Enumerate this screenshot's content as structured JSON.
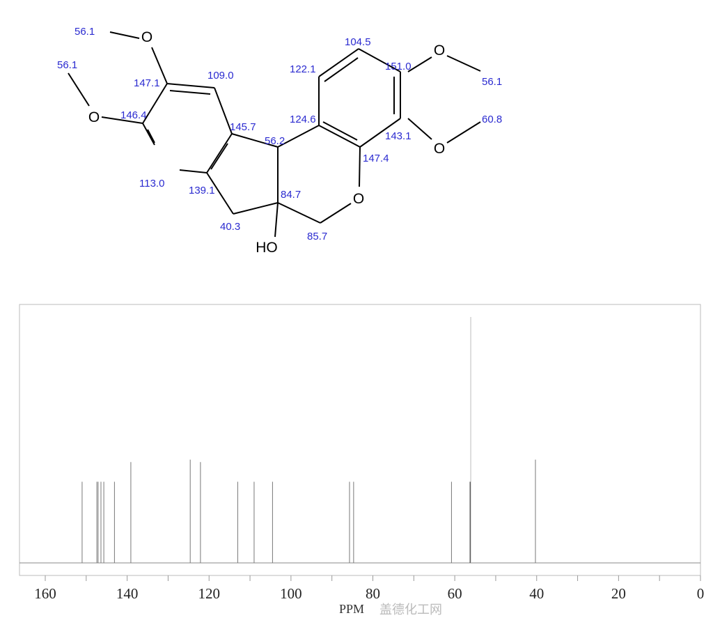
{
  "molecule": {
    "atoms": {
      "o_top_left": "O",
      "o_left": "O",
      "o_right_top": "O",
      "o_right_bottom": "O",
      "o_ring": "O",
      "hydroxyl": "HO"
    },
    "shift_labels": [
      "56.1",
      "56.1",
      "147.1",
      "109.0",
      "146.4",
      "145.7",
      "113.0",
      "139.1",
      "40.3",
      "56.2",
      "84.7",
      "85.7",
      "124.6",
      "122.1",
      "104.5",
      "151.0",
      "143.1",
      "147.4",
      "56.1",
      "60.8"
    ],
    "label_color": "#2a2ad0"
  },
  "chart_data": {
    "type": "bar",
    "title": "",
    "xlabel": "PPM",
    "ylabel": "",
    "xlim": [
      166.3,
      0
    ],
    "x_reversed": true,
    "x_ticks_major": [
      160,
      140,
      120,
      100,
      80,
      60,
      40,
      20,
      0
    ],
    "x_ticks_minor": [
      150,
      130,
      110,
      90,
      70,
      50,
      30,
      10
    ],
    "grid": false,
    "peaks": [
      {
        "ppm": 151.0,
        "intensity": 0.33
      },
      {
        "ppm": 147.4,
        "intensity": 0.33
      },
      {
        "ppm": 147.1,
        "intensity": 0.33
      },
      {
        "ppm": 146.4,
        "intensity": 0.33
      },
      {
        "ppm": 145.7,
        "intensity": 0.33
      },
      {
        "ppm": 143.1,
        "intensity": 0.33
      },
      {
        "ppm": 139.1,
        "intensity": 0.41
      },
      {
        "ppm": 124.6,
        "intensity": 0.42
      },
      {
        "ppm": 122.1,
        "intensity": 0.41
      },
      {
        "ppm": 113.0,
        "intensity": 0.33
      },
      {
        "ppm": 109.0,
        "intensity": 0.33
      },
      {
        "ppm": 104.5,
        "intensity": 0.33
      },
      {
        "ppm": 85.7,
        "intensity": 0.33
      },
      {
        "ppm": 84.7,
        "intensity": 0.33
      },
      {
        "ppm": 60.8,
        "intensity": 0.33
      },
      {
        "ppm": 56.2,
        "intensity": 0.33
      },
      {
        "ppm": 56.1,
        "intensity": 1.0
      },
      {
        "ppm": 40.3,
        "intensity": 0.42
      }
    ]
  },
  "watermark": "盖德化工网"
}
